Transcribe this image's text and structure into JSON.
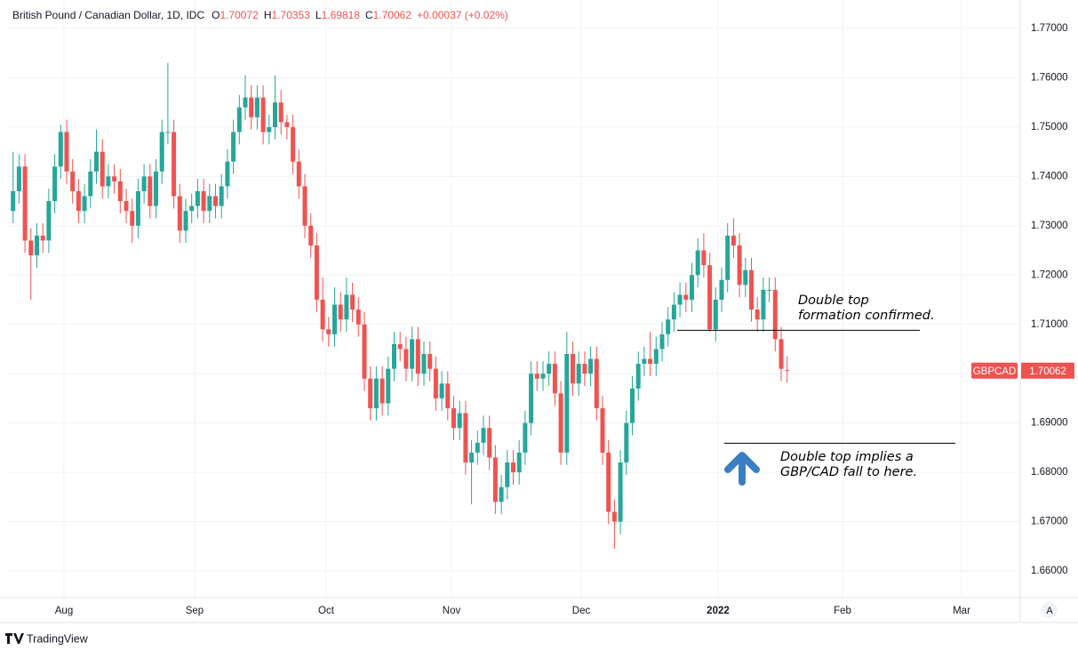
{
  "chart_data": {
    "type": "candlestick",
    "title": "British Pound / Canadian Dollar, 1D, IDC",
    "ohlc_letters": [
      "O",
      "H",
      "L",
      "C"
    ],
    "change_label": "+0.00037 (+0.02%)",
    "ticker": "GBPCAD",
    "up_color": "#26a69a",
    "down_color": "#ef5350",
    "grid": true,
    "xlim": [
      -1,
      169.15
    ],
    "xticks": [
      {
        "value": 8.55,
        "label": "Aug"
      },
      {
        "value": 30.49,
        "label": "Sep"
      },
      {
        "value": 52.58,
        "label": "Oct"
      },
      {
        "value": 73.63,
        "label": "Nov"
      },
      {
        "value": 95.42,
        "label": "Dec"
      },
      {
        "value": 118.4,
        "label": "2022"
      },
      {
        "value": 139.3,
        "label": "Feb"
      },
      {
        "value": 159.3,
        "label": "Mar"
      }
    ],
    "ylim": [
      1.65459,
      1.77433
    ],
    "yticks": [
      {
        "value": 1.66,
        "label": "1.66000"
      },
      {
        "value": 1.67,
        "label": "1.67000"
      },
      {
        "value": 1.68,
        "label": "1.68000"
      },
      {
        "value": 1.69,
        "label": "1.69000"
      },
      {
        "value": 1.7,
        "label": "1.70000"
      },
      {
        "value": 1.71,
        "label": "1.71000"
      },
      {
        "value": 1.72,
        "label": "1.72000"
      },
      {
        "value": 1.73,
        "label": "1.73000"
      },
      {
        "value": 1.74,
        "label": "1.74000"
      },
      {
        "value": 1.75,
        "label": "1.75000"
      },
      {
        "value": 1.76,
        "label": "1.76000"
      },
      {
        "value": 1.77,
        "label": "1.77000"
      }
    ],
    "annotations": [
      {
        "lines": [
          "Double top",
          "formation confirmed."
        ],
        "level": 1.7088
      },
      {
        "lines": [
          "Double top implies a",
          "GBP/CAD fall to here."
        ],
        "level": 1.6859
      }
    ],
    "ohlc": [
      [
        1.733,
        1.745,
        1.7305,
        1.737
      ],
      [
        1.737,
        1.7445,
        1.7345,
        1.742
      ],
      [
        1.742,
        1.7445,
        1.7245,
        1.727
      ],
      [
        1.727,
        1.7295,
        1.715,
        1.724
      ],
      [
        1.724,
        1.7305,
        1.7215,
        1.728
      ],
      [
        1.728,
        1.7305,
        1.7245,
        1.727
      ],
      [
        1.727,
        1.7375,
        1.7245,
        1.735
      ],
      [
        1.735,
        1.7445,
        1.7325,
        1.742
      ],
      [
        1.742,
        1.7505,
        1.7395,
        1.749
      ],
      [
        1.749,
        1.7515,
        1.7385,
        1.741
      ],
      [
        1.741,
        1.7435,
        1.7345,
        1.737
      ],
      [
        1.737,
        1.7395,
        1.7305,
        1.733
      ],
      [
        1.733,
        1.7385,
        1.7305,
        1.736
      ],
      [
        1.736,
        1.7435,
        1.7335,
        1.741
      ],
      [
        1.741,
        1.7495,
        1.7385,
        1.745
      ],
      [
        1.745,
        1.7475,
        1.7355,
        1.738
      ],
      [
        1.738,
        1.7425,
        1.7355,
        1.74
      ],
      [
        1.74,
        1.7425,
        1.7365,
        1.739
      ],
      [
        1.739,
        1.7415,
        1.7325,
        1.735
      ],
      [
        1.735,
        1.7375,
        1.7305,
        1.733
      ],
      [
        1.733,
        1.7355,
        1.7265,
        1.73
      ],
      [
        1.73,
        1.7395,
        1.7275,
        1.737
      ],
      [
        1.737,
        1.7425,
        1.7345,
        1.74
      ],
      [
        1.74,
        1.7425,
        1.7315,
        1.734
      ],
      [
        1.734,
        1.7435,
        1.7315,
        1.741
      ],
      [
        1.741,
        1.7515,
        1.7385,
        1.749
      ],
      [
        1.749,
        1.763,
        1.7465,
        1.749
      ],
      [
        1.749,
        1.7515,
        1.7335,
        1.736
      ],
      [
        1.736,
        1.7385,
        1.7265,
        1.729
      ],
      [
        1.729,
        1.7355,
        1.7265,
        1.733
      ],
      [
        1.733,
        1.7365,
        1.7305,
        1.734
      ],
      [
        1.734,
        1.7395,
        1.7315,
        1.737
      ],
      [
        1.737,
        1.7395,
        1.7305,
        1.733
      ],
      [
        1.733,
        1.7385,
        1.7305,
        1.736
      ],
      [
        1.736,
        1.7385,
        1.7315,
        1.734
      ],
      [
        1.734,
        1.7405,
        1.7315,
        1.738
      ],
      [
        1.738,
        1.7455,
        1.7355,
        1.743
      ],
      [
        1.743,
        1.7515,
        1.7405,
        1.749
      ],
      [
        1.749,
        1.7565,
        1.7465,
        1.754
      ],
      [
        1.754,
        1.7605,
        1.7515,
        1.756
      ],
      [
        1.756,
        1.7585,
        1.7495,
        1.752
      ],
      [
        1.752,
        1.7585,
        1.7495,
        1.756
      ],
      [
        1.756,
        1.7585,
        1.7465,
        1.749
      ],
      [
        1.749,
        1.7525,
        1.7465,
        1.75
      ],
      [
        1.75,
        1.7605,
        1.7475,
        1.755
      ],
      [
        1.755,
        1.7575,
        1.7485,
        1.751
      ],
      [
        1.751,
        1.7525,
        1.7475,
        1.75
      ],
      [
        1.75,
        1.7525,
        1.7405,
        1.743
      ],
      [
        1.743,
        1.7455,
        1.7355,
        1.738
      ],
      [
        1.738,
        1.7405,
        1.7275,
        1.73
      ],
      [
        1.73,
        1.7325,
        1.7235,
        1.726
      ],
      [
        1.726,
        1.7285,
        1.7125,
        1.715
      ],
      [
        1.715,
        1.7195,
        1.7065,
        1.709
      ],
      [
        1.709,
        1.7115,
        1.7055,
        1.708
      ],
      [
        1.708,
        1.7175,
        1.7055,
        1.714
      ],
      [
        1.714,
        1.7165,
        1.7085,
        1.711
      ],
      [
        1.711,
        1.7195,
        1.7085,
        1.716
      ],
      [
        1.716,
        1.7185,
        1.7105,
        1.713
      ],
      [
        1.713,
        1.7155,
        1.7075,
        1.71
      ],
      [
        1.71,
        1.7125,
        1.6965,
        1.699
      ],
      [
        1.699,
        1.7015,
        1.6905,
        1.693
      ],
      [
        1.693,
        1.7015,
        1.6905,
        1.699
      ],
      [
        1.699,
        1.7015,
        1.6915,
        1.694
      ],
      [
        1.694,
        1.7035,
        1.6915,
        1.701
      ],
      [
        1.701,
        1.7085,
        1.6985,
        1.706
      ],
      [
        1.706,
        1.7085,
        1.7025,
        1.705
      ],
      [
        1.705,
        1.7075,
        1.6985,
        1.701
      ],
      [
        1.701,
        1.7095,
        1.6985,
        1.707
      ],
      [
        1.707,
        1.7095,
        1.6975,
        1.7
      ],
      [
        1.7,
        1.7065,
        1.6975,
        1.704
      ],
      [
        1.704,
        1.7065,
        1.6985,
        1.701
      ],
      [
        1.701,
        1.7035,
        1.6925,
        1.695
      ],
      [
        1.695,
        1.7005,
        1.6925,
        1.698
      ],
      [
        1.698,
        1.7005,
        1.6905,
        1.693
      ],
      [
        1.693,
        1.6955,
        1.6865,
        1.689
      ],
      [
        1.689,
        1.6945,
        1.6865,
        1.692
      ],
      [
        1.692,
        1.6945,
        1.6795,
        1.682
      ],
      [
        1.682,
        1.6865,
        1.6735,
        1.684
      ],
      [
        1.684,
        1.6885,
        1.6815,
        1.686
      ],
      [
        1.686,
        1.6915,
        1.6835,
        1.689
      ],
      [
        1.689,
        1.6915,
        1.6805,
        1.683
      ],
      [
        1.683,
        1.6855,
        1.6715,
        1.674
      ],
      [
        1.674,
        1.6795,
        1.6715,
        1.677
      ],
      [
        1.677,
        1.6845,
        1.6745,
        1.682
      ],
      [
        1.682,
        1.6845,
        1.6775,
        1.68
      ],
      [
        1.68,
        1.6865,
        1.6775,
        1.684
      ],
      [
        1.684,
        1.6925,
        1.6815,
        1.69
      ],
      [
        1.69,
        1.7025,
        1.6875,
        1.7
      ],
      [
        1.7,
        1.7025,
        1.6965,
        1.699
      ],
      [
        1.699,
        1.7025,
        1.6965,
        1.7
      ],
      [
        1.7,
        1.7045,
        1.6975,
        1.702
      ],
      [
        1.702,
        1.7045,
        1.6935,
        1.696
      ],
      [
        1.696,
        1.6985,
        1.6815,
        1.684
      ],
      [
        1.684,
        1.7085,
        1.6815,
        1.704
      ],
      [
        1.704,
        1.7065,
        1.6955,
        1.698
      ],
      [
        1.698,
        1.7045,
        1.6955,
        1.702
      ],
      [
        1.702,
        1.7045,
        1.6975,
        1.7
      ],
      [
        1.7,
        1.7055,
        1.6975,
        1.703
      ],
      [
        1.703,
        1.7055,
        1.6905,
        1.693
      ],
      [
        1.693,
        1.6955,
        1.6815,
        1.684
      ],
      [
        1.684,
        1.6865,
        1.6695,
        1.672
      ],
      [
        1.672,
        1.6745,
        1.6645,
        1.67
      ],
      [
        1.67,
        1.6845,
        1.6675,
        1.682
      ],
      [
        1.682,
        1.6925,
        1.6795,
        1.69
      ],
      [
        1.69,
        1.6995,
        1.6875,
        1.697
      ],
      [
        1.697,
        1.7045,
        1.6945,
        1.702
      ],
      [
        1.702,
        1.7055,
        1.6995,
        1.703
      ],
      [
        1.703,
        1.7085,
        1.6995,
        1.702
      ],
      [
        1.702,
        1.7075,
        1.6995,
        1.705
      ],
      [
        1.705,
        1.7105,
        1.7025,
        1.708
      ],
      [
        1.708,
        1.7135,
        1.7055,
        1.711
      ],
      [
        1.711,
        1.7165,
        1.7085,
        1.714
      ],
      [
        1.714,
        1.7185,
        1.7115,
        1.716
      ],
      [
        1.716,
        1.7185,
        1.7125,
        1.715
      ],
      [
        1.715,
        1.7225,
        1.7125,
        1.72
      ],
      [
        1.72,
        1.7275,
        1.7175,
        1.725
      ],
      [
        1.725,
        1.7285,
        1.7195,
        1.722
      ],
      [
        1.722,
        1.7245,
        1.7085,
        1.709
      ],
      [
        1.709,
        1.7175,
        1.7065,
        1.715
      ],
      [
        1.715,
        1.7215,
        1.7125,
        1.719
      ],
      [
        1.719,
        1.7305,
        1.7165,
        1.728
      ],
      [
        1.728,
        1.7315,
        1.7235,
        1.726
      ],
      [
        1.726,
        1.7285,
        1.7155,
        1.718
      ],
      [
        1.718,
        1.7235,
        1.7155,
        1.721
      ],
      [
        1.721,
        1.7235,
        1.7105,
        1.713
      ],
      [
        1.713,
        1.7155,
        1.7085,
        1.711
      ],
      [
        1.711,
        1.7195,
        1.7085,
        1.717
      ],
      [
        1.717,
        1.7195,
        1.7145,
        1.717
      ],
      [
        1.717,
        1.7195,
        1.7045,
        1.707
      ],
      [
        1.707,
        1.7095,
        1.6985,
        1.701
      ],
      [
        1.70072,
        1.70353,
        1.69818,
        1.70062
      ]
    ]
  },
  "footer": {
    "brand": "TradingView",
    "scale_button": "A"
  }
}
